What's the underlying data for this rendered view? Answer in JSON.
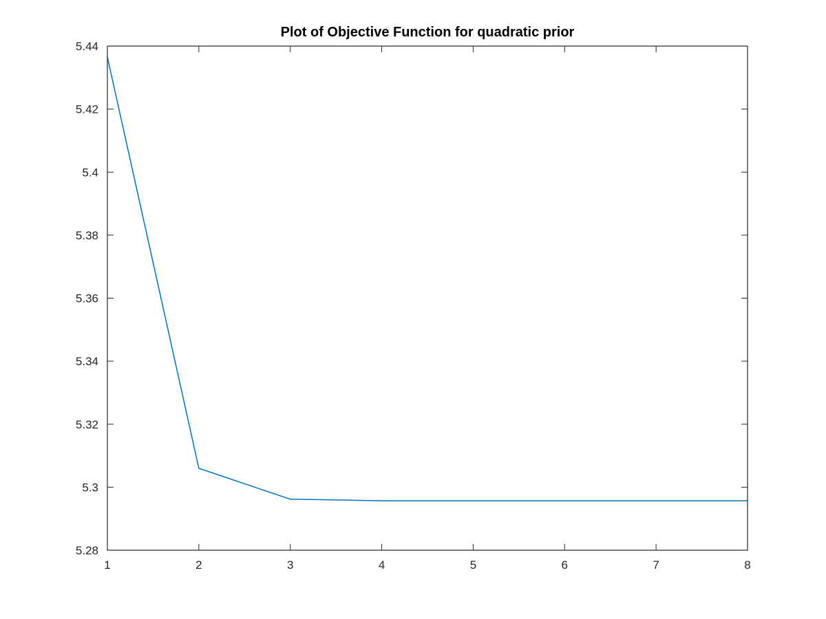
{
  "chart_data": {
    "type": "line",
    "title": "Plot of Objective Function for quadratic prior",
    "xlabel": "",
    "ylabel": "",
    "xlim": [
      1,
      8
    ],
    "ylim": [
      5.28,
      5.44
    ],
    "x_ticks": [
      "1",
      "2",
      "3",
      "4",
      "5",
      "6",
      "7",
      "8"
    ],
    "y_ticks": [
      "5.28",
      "5.3",
      "5.32",
      "5.34",
      "5.36",
      "5.38",
      "5.4",
      "5.42",
      "5.44"
    ],
    "grid": false,
    "box": true,
    "series": [
      {
        "color": "#0072BD",
        "x": [
          1,
          2,
          3,
          4,
          5,
          6,
          7,
          8
        ],
        "y": [
          5.4365,
          5.306,
          5.2962,
          5.2957,
          5.2957,
          5.2957,
          5.2957,
          5.2957
        ]
      }
    ]
  }
}
